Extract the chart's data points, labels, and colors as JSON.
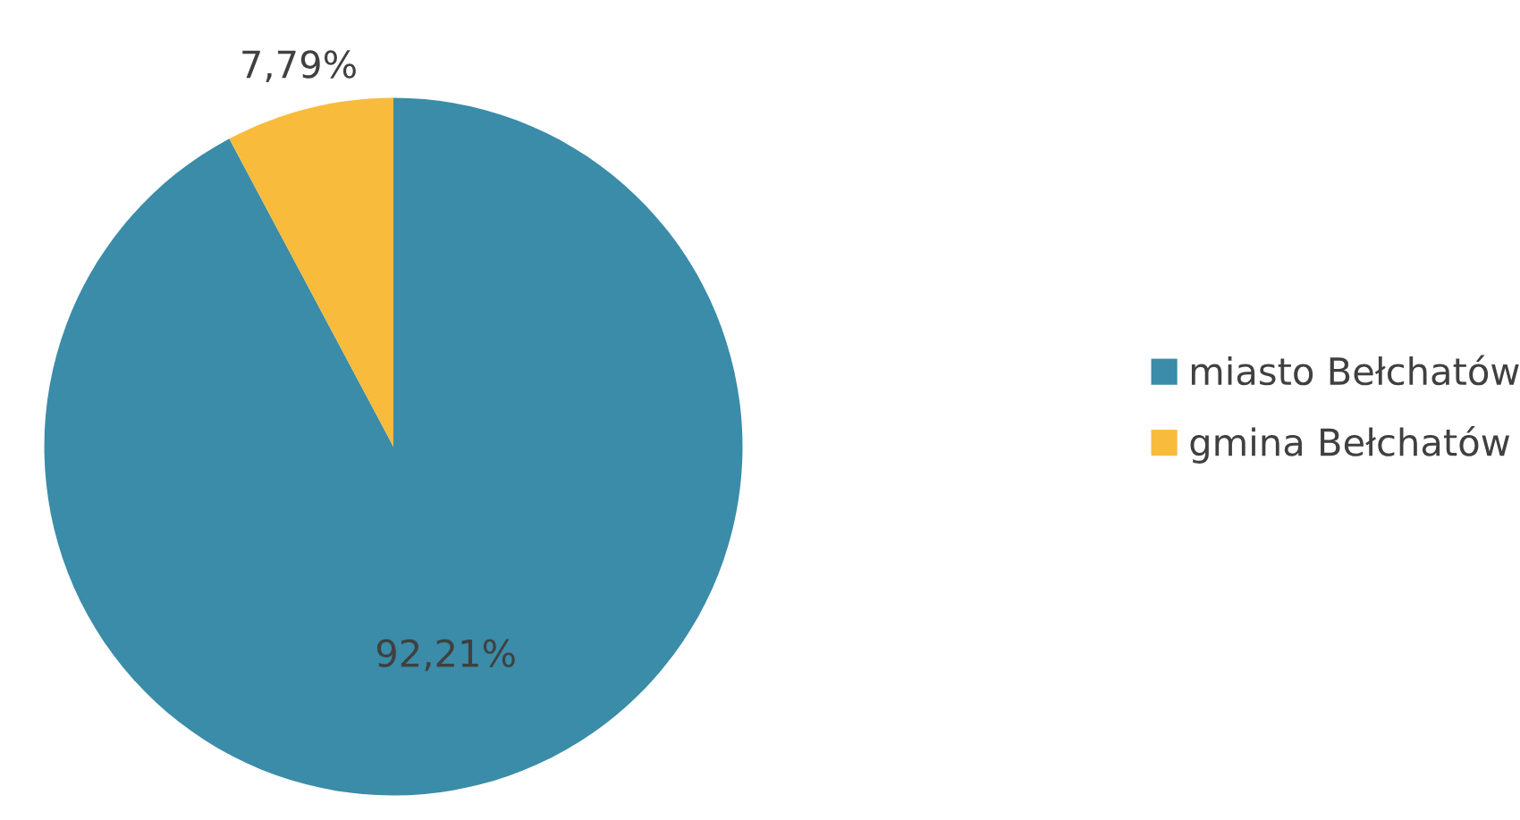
{
  "chart_data": {
    "type": "pie",
    "categories": [
      "miasto Bełchatów",
      "gmina Bełchatów"
    ],
    "values": [
      92.21,
      7.79
    ],
    "colors": [
      "#3a8ca8",
      "#f8bb3c"
    ],
    "value_labels": [
      "92,21%",
      "7,79%"
    ],
    "legend": "right"
  }
}
